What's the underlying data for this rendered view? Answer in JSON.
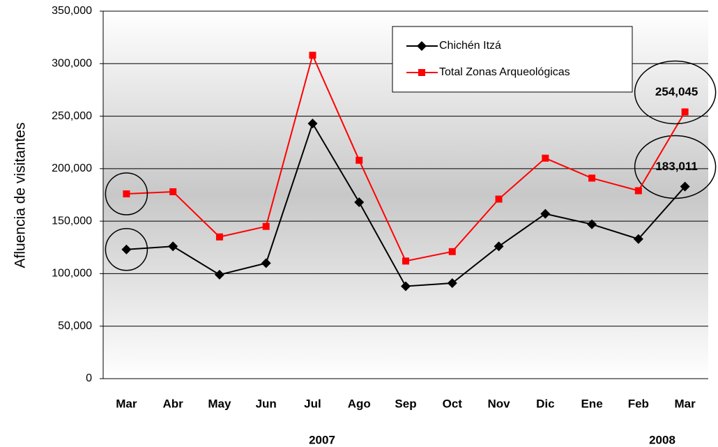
{
  "chart_data": {
    "type": "line",
    "y_label": "Afluencia de visitantes",
    "categories": [
      "Mar",
      "Abr",
      "May",
      "Jun",
      "Jul",
      "Ago",
      "Sep",
      "Oct",
      "Nov",
      "Dic",
      "Ene",
      "Feb",
      "Mar"
    ],
    "annotations": [
      "2007",
      "2008"
    ],
    "series": [
      {
        "name": "Chichén Itzá",
        "color": "#000000",
        "marker": "diamond",
        "values": [
          123000,
          126000,
          99000,
          110000,
          243000,
          168000,
          88000,
          91000,
          126000,
          157000,
          147000,
          133000,
          183011
        ],
        "value_labels": [
          null,
          null,
          null,
          null,
          null,
          null,
          null,
          null,
          null,
          null,
          null,
          null,
          "183,011"
        ]
      },
      {
        "name": "Total Zonas Arqueológicas",
        "color": "#ff0000",
        "marker": "square",
        "values": [
          176000,
          178000,
          135000,
          145000,
          308000,
          208000,
          112000,
          121000,
          171000,
          210000,
          191000,
          179000,
          254045
        ],
        "value_labels": [
          null,
          null,
          null,
          null,
          null,
          null,
          null,
          null,
          null,
          null,
          null,
          null,
          "254,045"
        ]
      }
    ],
    "ylim": [
      0,
      350000
    ],
    "yticks": [
      0,
      {
        "value": 50000,
        "label": "50,000"
      },
      {
        "value": 100000,
        "label": "100,000"
      },
      {
        "value": 150000,
        "label": "150,000"
      },
      {
        "value": 200000,
        "label": "200,000"
      },
      {
        "value": 250000,
        "label": "250,000"
      },
      {
        "value": 300000,
        "label": "300,000"
      },
      {
        "value": 350000,
        "label": "350,000"
      }
    ],
    "grid": true
  }
}
